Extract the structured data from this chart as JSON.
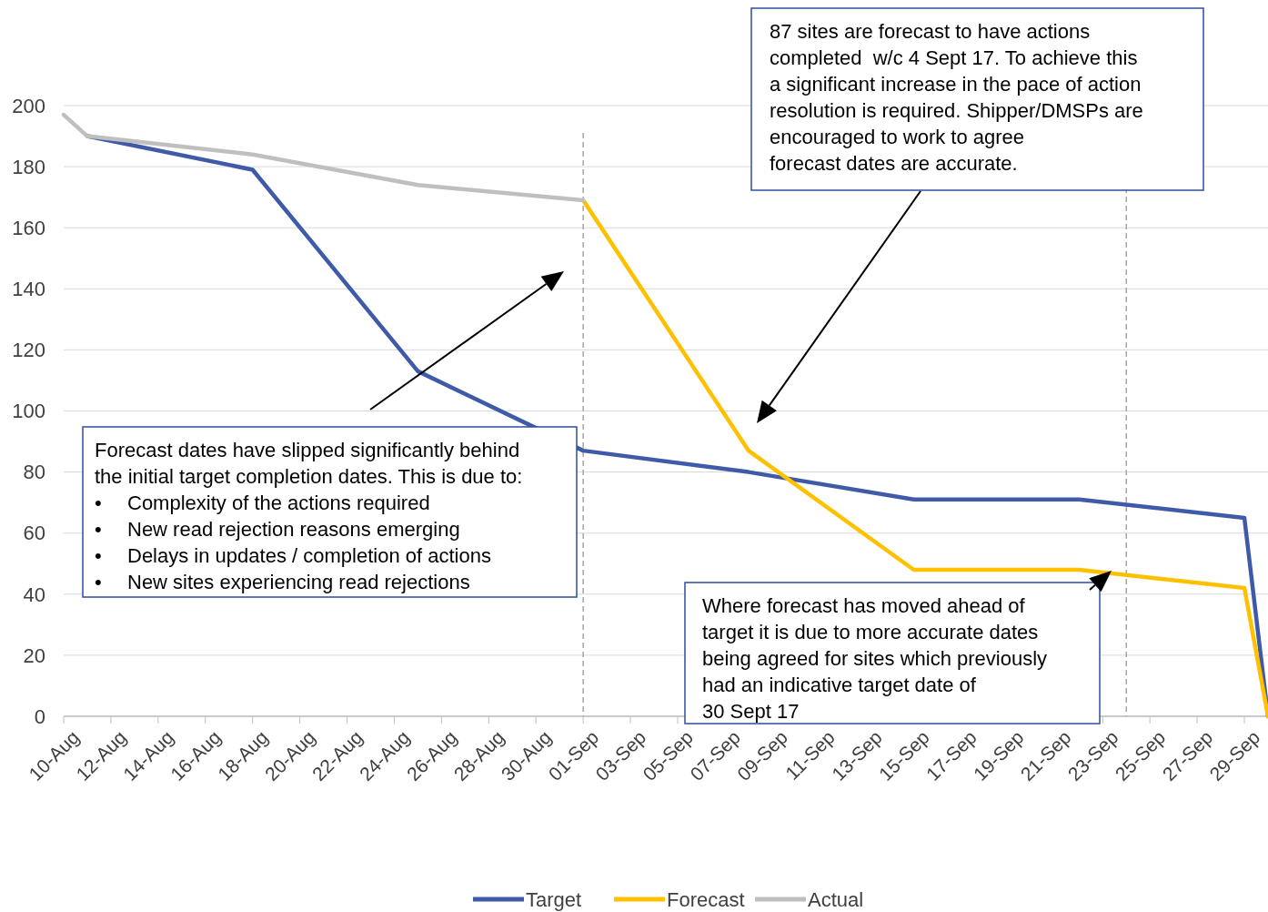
{
  "chart_data": {
    "type": "line",
    "xlim": [
      "--08-10",
      "--09-30"
    ],
    "xticks": [
      {
        "value": "--08-10",
        "label": "10-Aug"
      },
      {
        "value": "--08-12",
        "label": "12-Aug"
      },
      {
        "value": "--08-14",
        "label": "14-Aug"
      },
      {
        "value": "--08-16",
        "label": "16-Aug"
      },
      {
        "value": "--08-18",
        "label": "18-Aug"
      },
      {
        "value": "--08-20",
        "label": "20-Aug"
      },
      {
        "value": "--08-22",
        "label": "22-Aug"
      },
      {
        "value": "--08-24",
        "label": "24-Aug"
      },
      {
        "value": "--08-26",
        "label": "26-Aug"
      },
      {
        "value": "--08-28",
        "label": "28-Aug"
      },
      {
        "value": "--08-30",
        "label": "30-Aug"
      },
      {
        "value": "--09-01",
        "label": "01-Sep"
      },
      {
        "value": "--09-03",
        "label": "03-Sep"
      },
      {
        "value": "--09-05",
        "label": "05-Sep"
      },
      {
        "value": "--09-07",
        "label": "07-Sep"
      },
      {
        "value": "--09-09",
        "label": "09-Sep"
      },
      {
        "value": "--09-11",
        "label": "11-Sep"
      },
      {
        "value": "--09-13",
        "label": "13-Sep"
      },
      {
        "value": "--09-15",
        "label": "15-Sep"
      },
      {
        "value": "--09-17",
        "label": "17-Sep"
      },
      {
        "value": "--09-19",
        "label": "19-Sep"
      },
      {
        "value": "--09-21",
        "label": "21-Sep"
      },
      {
        "value": "--09-23",
        "label": "23-Sep"
      },
      {
        "value": "--09-25",
        "label": "25-Sep"
      },
      {
        "value": "--09-27",
        "label": "27-Sep"
      },
      {
        "value": "--09-29",
        "label": "29-Sep"
      }
    ],
    "ylim": [
      0,
      200
    ],
    "yticks": [
      0,
      20,
      40,
      60,
      80,
      100,
      120,
      140,
      160,
      180,
      200
    ],
    "grid": "y",
    "legend": "bottom",
    "line_style": "solid",
    "series": [
      {
        "name": "Target",
        "color": "#3f5aa8",
        "x": [
          "--08-11",
          "--08-18",
          "--08-25",
          "--09-01",
          "--09-08",
          "--09-15",
          "--09-22",
          "--09-29",
          "--09-30"
        ],
        "values": [
          190,
          179,
          113,
          87,
          80,
          71,
          71,
          65,
          0
        ]
      },
      {
        "name": "Forecast",
        "color": "#ffc000",
        "x": [
          "--09-01",
          "--09-08",
          "--09-15",
          "--09-22",
          "--09-29",
          "--09-30"
        ],
        "values": [
          169,
          87,
          48,
          48,
          42,
          0
        ]
      },
      {
        "name": "Actual",
        "color": "#bfbfbf",
        "x": [
          "--08-10",
          "--08-11",
          "--08-18",
          "--08-25",
          "--09-01"
        ],
        "values": [
          197,
          190,
          184,
          174,
          169
        ]
      }
    ],
    "ref_lines": [
      {
        "axis": "x",
        "value": "--09-01",
        "color": "#a6a6a6",
        "line_style": "dashed"
      },
      {
        "axis": "x",
        "value": "--09-24",
        "color": "#a6a6a6",
        "line_style": "dashed"
      }
    ],
    "annotations": [
      "Forecast dates have slipped significantly behind\nthe initial target completion dates. This is due to:\n•\tComplexity of the actions required\n•\tNew read rejection reasons emerging\n•\tDelays in updates / completion of actions\n•\tNew sites experiencing read rejections",
      "87 sites are forecast to have actions\ncompleted  w/c 4 Sept 17. To achieve this\na significant increase in the pace of action\nresolution is required. Shipper/DMSPs are\nencouraged to work to agree\nforecast dates are accurate.",
      "Where forecast has moved ahead of\ntarget it is due to more accurate dates\nbeing agreed for sites which previously\nhad an indicative target date of\n30 Sept 17"
    ]
  }
}
